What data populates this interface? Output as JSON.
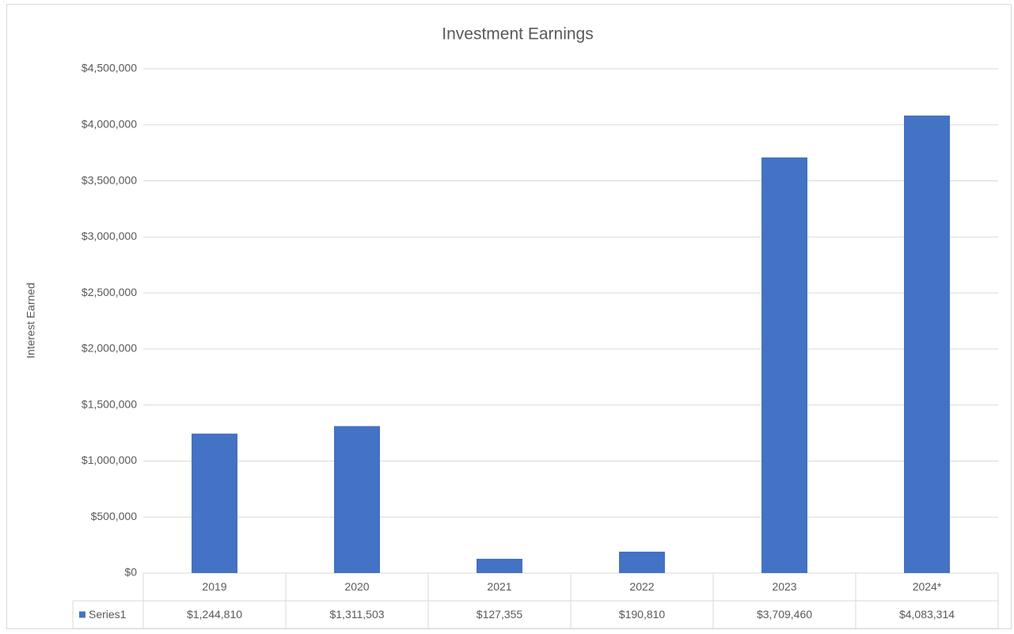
{
  "chart_data": {
    "type": "bar",
    "title": "Investment Earnings",
    "y_label": "Interest Earned",
    "categories": [
      "2019",
      "2020",
      "2021",
      "2022",
      "2023",
      "2024*"
    ],
    "series": [
      {
        "name": "Series1",
        "color": "#4472c4",
        "values": [
          1244810,
          1311503,
          127355,
          190810,
          3709460,
          4083314
        ],
        "value_labels": [
          "$1,244,810",
          "$1,311,503",
          "$127,355",
          "$190,810",
          "$3,709,460",
          "$4,083,314"
        ]
      }
    ],
    "ylim": [
      0,
      4500000
    ],
    "yticks": [
      {
        "value": 0,
        "label": "$0"
      },
      {
        "value": 500000,
        "label": "$500,000"
      },
      {
        "value": 1000000,
        "label": "$1,000,000"
      },
      {
        "value": 1500000,
        "label": "$1,500,000"
      },
      {
        "value": 2000000,
        "label": "$2,000,000"
      },
      {
        "value": 2500000,
        "label": "$2,500,000"
      },
      {
        "value": 3000000,
        "label": "$3,000,000"
      },
      {
        "value": 3500000,
        "label": "$3,500,000"
      },
      {
        "value": 4000000,
        "label": "$4,000,000"
      },
      {
        "value": 4500000,
        "label": "$4,500,000"
      }
    ],
    "grid": true,
    "data_table": true
  }
}
